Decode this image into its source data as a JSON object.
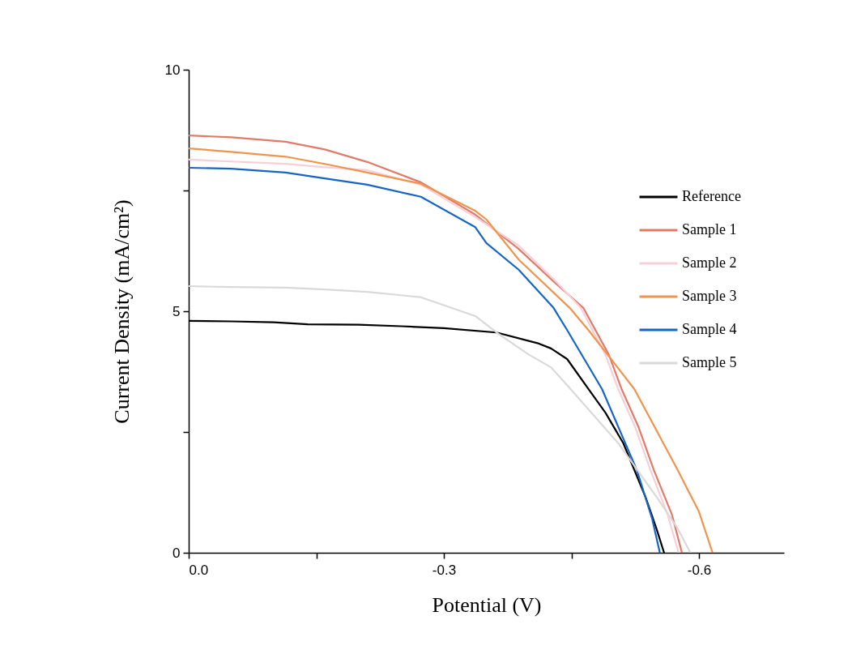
{
  "chart_data": {
    "type": "line",
    "xlabel": "Potential (V)",
    "ylabel": "Current Density (mA/cm²)",
    "xlim": [
      0,
      -0.7
    ],
    "ylim": [
      0,
      10
    ],
    "xticks": [
      {
        "value": 0,
        "label": "0.0"
      },
      {
        "value": -0.15,
        "label": null
      },
      {
        "value": -0.3,
        "label": "-0.3"
      },
      {
        "value": -0.45,
        "label": null
      },
      {
        "value": -0.6,
        "label": "-0.6"
      }
    ],
    "yticks": [
      0,
      {
        "value": 2.5,
        "label": null
      },
      5,
      {
        "value": 7.5,
        "label": null
      },
      10
    ],
    "grid": false,
    "legend": "top right",
    "marker": "none",
    "line_style": "solid",
    "series": [
      {
        "name": "Reference",
        "color": "#000000",
        "x": [
          0,
          -0.05,
          -0.1,
          -0.14,
          -0.2,
          -0.25,
          -0.3,
          -0.362,
          -0.41,
          -0.426,
          -0.445,
          -0.47,
          -0.49,
          -0.511,
          -0.537,
          -0.55,
          -0.559
        ],
        "values": [
          4.8,
          4.79,
          4.77,
          4.73,
          4.72,
          4.69,
          4.65,
          4.56,
          4.34,
          4.23,
          4.01,
          3.39,
          2.9,
          2.27,
          1.16,
          0.5,
          0
        ]
      },
      {
        "name": "Sample 1",
        "color": "#e07b67",
        "x": [
          0,
          -0.05,
          -0.114,
          -0.16,
          -0.21,
          -0.273,
          -0.337,
          -0.388,
          -0.43,
          -0.464,
          -0.494,
          -0.509,
          -0.529,
          -0.547,
          -0.568,
          -0.58
        ],
        "values": [
          8.64,
          8.6,
          8.51,
          8.35,
          8.09,
          7.67,
          7.0,
          6.29,
          5.6,
          5.07,
          4.1,
          3.39,
          2.6,
          1.71,
          0.8,
          0
        ]
      },
      {
        "name": "Sample 2",
        "color": "#f7cfd6",
        "x": [
          0,
          -0.05,
          -0.114,
          -0.16,
          -0.21,
          -0.273,
          -0.337,
          -0.388,
          -0.43,
          -0.461,
          -0.49,
          -0.505,
          -0.525,
          -0.543,
          -0.563,
          -0.576
        ],
        "values": [
          8.14,
          8.1,
          8.05,
          7.98,
          7.92,
          7.62,
          6.95,
          6.36,
          5.65,
          5.07,
          4.1,
          3.39,
          2.6,
          1.71,
          0.8,
          0
        ]
      },
      {
        "name": "Sample 3",
        "color": "#f0944d",
        "x": [
          0,
          -0.05,
          -0.114,
          -0.16,
          -0.21,
          -0.273,
          -0.337,
          -0.35,
          -0.388,
          -0.448,
          -0.47,
          -0.524,
          -0.575,
          -0.6,
          -0.616
        ],
        "values": [
          8.37,
          8.3,
          8.2,
          8.05,
          7.87,
          7.64,
          7.08,
          6.9,
          6.07,
          5.07,
          4.61,
          3.39,
          1.71,
          0.85,
          0
        ]
      },
      {
        "name": "Sample 4",
        "color": "#1565c8",
        "x": [
          0,
          -0.05,
          -0.114,
          -0.16,
          -0.21,
          -0.273,
          -0.337,
          -0.35,
          -0.388,
          -0.429,
          -0.445,
          -0.486,
          -0.527,
          -0.545,
          -0.554
        ],
        "values": [
          7.97,
          7.95,
          7.87,
          7.75,
          7.62,
          7.37,
          6.74,
          6.41,
          5.86,
          5.07,
          4.61,
          3.39,
          1.71,
          0.7,
          0
        ]
      },
      {
        "name": "Sample 5",
        "color": "#d9d9d9",
        "x": [
          0,
          -0.05,
          -0.114,
          -0.16,
          -0.21,
          -0.273,
          -0.337,
          -0.362,
          -0.4,
          -0.426,
          -0.445,
          -0.505,
          -0.55,
          -0.575,
          -0.59
        ],
        "values": [
          5.52,
          5.5,
          5.49,
          5.45,
          5.4,
          5.29,
          4.9,
          4.56,
          4.1,
          3.84,
          3.47,
          2.27,
          1.16,
          0.5,
          0
        ]
      }
    ]
  }
}
